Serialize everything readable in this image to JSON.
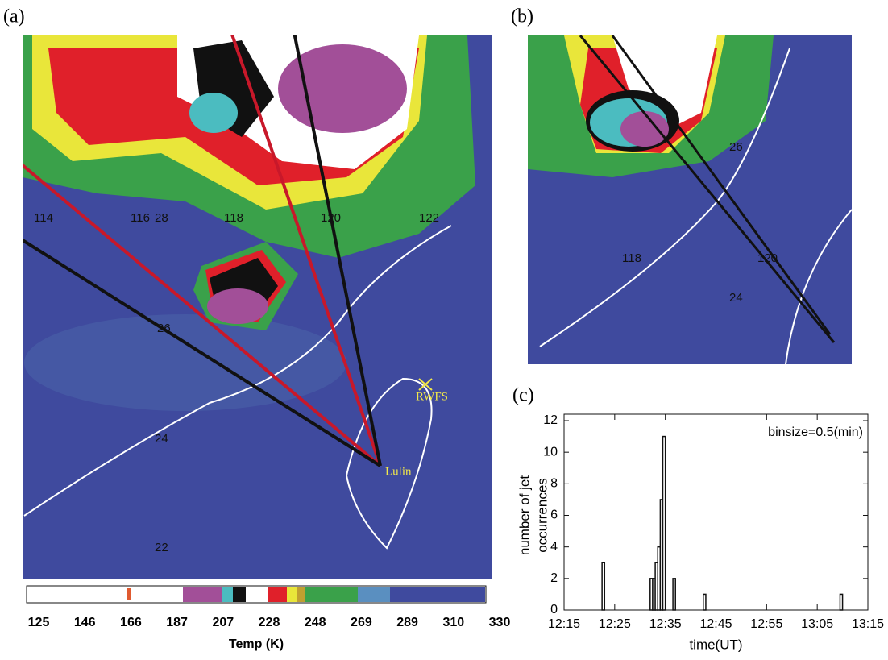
{
  "panel_labels": [
    "(a)",
    "(b)",
    "(c)"
  ],
  "panel_a": {
    "longitude_labels": [
      "114",
      "116",
      "118",
      "120",
      "122"
    ],
    "latitude_labels": [
      "28",
      "26",
      "24",
      "22"
    ],
    "stations": [
      "Lulin",
      "RWFS"
    ]
  },
  "panel_b": {
    "longitude_labels": [
      "118",
      "120"
    ],
    "latitude_labels": [
      "26",
      "24"
    ]
  },
  "colorbar": {
    "labels": [
      "125",
      "146",
      "166",
      "187",
      "207",
      "228",
      "248",
      "269",
      "289",
      "310",
      "330"
    ],
    "title": "Temp (K)"
  },
  "chart_data": {
    "type": "histogram",
    "annotation": "binsize=0.5(min)",
    "bin_width": 0.5,
    "x": [
      22.5,
      32,
      32.5,
      33,
      33.5,
      34,
      34.5,
      36.5,
      42.5,
      69.5
    ],
    "values": [
      3,
      2,
      2,
      3,
      4,
      7,
      11,
      2,
      1,
      1
    ],
    "xlim": [
      15,
      75
    ],
    "xticks": [
      {
        "value": 15,
        "label": "12:15"
      },
      {
        "value": 25,
        "label": "12:25"
      },
      {
        "value": 35,
        "label": "12:35"
      },
      {
        "value": 45,
        "label": "12:45"
      },
      {
        "value": 55,
        "label": "12:55"
      },
      {
        "value": 65,
        "label": "13:05"
      },
      {
        "value": 75,
        "label": "13:15"
      }
    ],
    "ylim": [
      0,
      12
    ],
    "yticks": [
      0,
      2,
      4,
      6,
      8,
      10,
      12
    ],
    "x_label": "time(UT)",
    "y_label": [
      "number of jet",
      "occurrences"
    ]
  }
}
